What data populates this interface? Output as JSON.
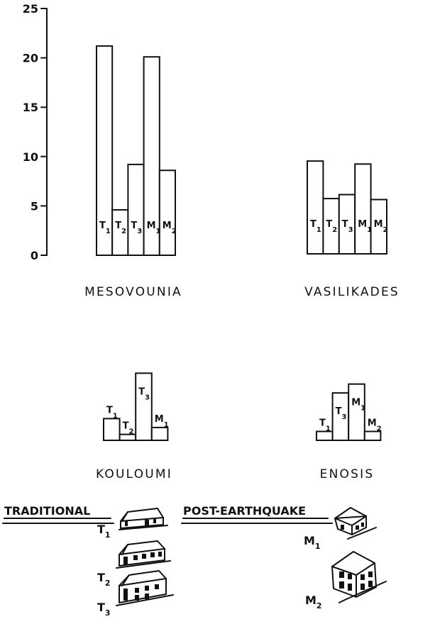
{
  "colors": {
    "ink": "#111111",
    "paper": "#ffffff"
  },
  "chart_data": {
    "type": "bar",
    "ylim": [
      0,
      25
    ],
    "y_ticks": [
      0,
      5,
      10,
      15,
      20,
      25
    ],
    "sites": [
      {
        "name": "MESOVOUNIA",
        "bars": [
          {
            "letter": "T",
            "sub": "1",
            "value": 21.2
          },
          {
            "letter": "T",
            "sub": "2",
            "value": 4.6
          },
          {
            "letter": "T",
            "sub": "3",
            "value": 9.2
          },
          {
            "letter": "M",
            "sub": "1",
            "value": 20.1
          },
          {
            "letter": "M",
            "sub": "2",
            "value": 8.6
          }
        ]
      },
      {
        "name": "VASILIKADES",
        "bars": [
          {
            "letter": "T",
            "sub": "1",
            "value": 9.4
          },
          {
            "letter": "T",
            "sub": "2",
            "value": 5.6
          },
          {
            "letter": "T",
            "sub": "3",
            "value": 6.0
          },
          {
            "letter": "M",
            "sub": "1",
            "value": 9.1
          },
          {
            "letter": "M",
            "sub": "2",
            "value": 5.5
          }
        ]
      },
      {
        "name": "KOULOUMI",
        "bars": [
          {
            "letter": "T",
            "sub": "1",
            "value": 2.2
          },
          {
            "letter": "T",
            "sub": "2",
            "value": 0.6
          },
          {
            "letter": "T",
            "sub": "3",
            "value": 6.8
          },
          {
            "letter": "M",
            "sub": "1",
            "value": 1.3
          }
        ]
      },
      {
        "name": "ENOSIS",
        "bars": [
          {
            "letter": "T",
            "sub": "1",
            "value": 0.9
          },
          {
            "letter": "T",
            "sub": "3",
            "value": 4.8
          },
          {
            "letter": "M",
            "sub": "1",
            "value": 5.7
          },
          {
            "letter": "M",
            "sub": "2",
            "value": 0.9
          }
        ]
      }
    ],
    "legend": {
      "traditional": {
        "title": "TRADITIONAL",
        "items": [
          {
            "letter": "T",
            "sub": "1"
          },
          {
            "letter": "T",
            "sub": "2"
          },
          {
            "letter": "T",
            "sub": "3"
          }
        ]
      },
      "post_earthquake": {
        "title": "POST-EARTHQUAKE",
        "items": [
          {
            "letter": "M",
            "sub": "1"
          },
          {
            "letter": "M",
            "sub": "2"
          }
        ]
      }
    }
  }
}
